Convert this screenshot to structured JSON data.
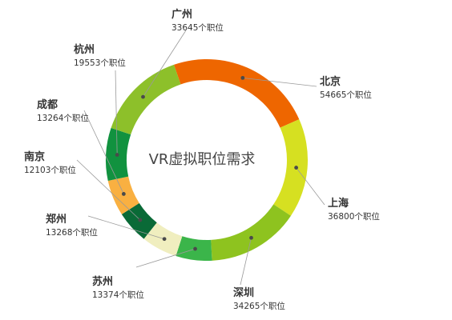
{
  "chart_data": {
    "type": "pie",
    "title": "VR虚拟职位需求",
    "unit_suffix": "个职位",
    "categories": [
      "北京",
      "上海",
      "深圳",
      "苏州",
      "郑州",
      "南京",
      "成都",
      "杭州",
      "广州"
    ],
    "values": [
      54665,
      36800,
      34265,
      13374,
      13268,
      12103,
      13264,
      19553,
      33645
    ],
    "value_labels": [
      "54665个职位",
      "36800个职位",
      "34265个职位",
      "13374个职位",
      "13268个职位",
      "12103个职位",
      "13264个职位",
      "19553个职位",
      "33645个职位"
    ],
    "colors": [
      "#ee6600",
      "#d6e021",
      "#8ec31f",
      "#3bb54a",
      "#f0eebf",
      "#0a6a37",
      "#f9b041",
      "#11923f",
      "#8dc02a"
    ],
    "legend": "none",
    "style": "donut"
  }
}
